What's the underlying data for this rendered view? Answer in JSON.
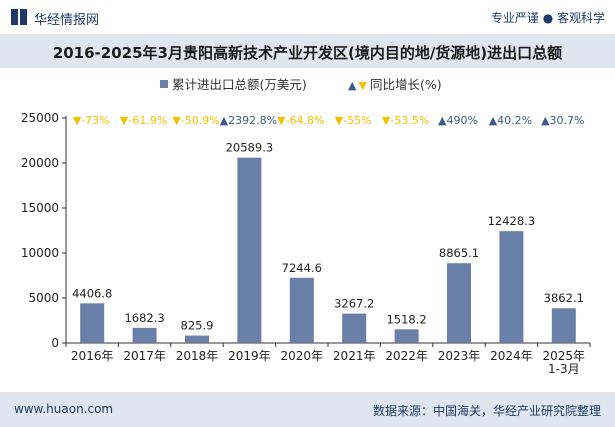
{
  "header": {
    "brand": "华经情报网",
    "tagline": "专业严谨 ● 客观科学"
  },
  "title": "2016-2025年3月贵阳高新技术产业开发区(境内目的地/货源地)进出口总额",
  "legend": {
    "bar_label": "累计进出口总额(万美元)",
    "growth_label": "同比增长(%)"
  },
  "footer": {
    "site": "www.huaon.com",
    "source": "数据来源：中国海关，华经产业研究院整理"
  },
  "colors": {
    "bar": "#6a7fa8",
    "up": "#3d5a8a",
    "down": "#f2c200",
    "title_bg": "#dfe6ef"
  },
  "chart_data": {
    "type": "bar",
    "categories": [
      "2016年",
      "2017年",
      "2018年",
      "2019年",
      "2020年",
      "2021年",
      "2022年",
      "2023年",
      "2024年",
      "2025年\n1-3月"
    ],
    "series": [
      {
        "name": "累计进出口总额(万美元)",
        "values": [
          4406.8,
          1682.3,
          825.9,
          20589.3,
          7244.6,
          3267.2,
          1518.2,
          8865.1,
          12428.3,
          3862.1
        ]
      }
    ],
    "growth": {
      "name": "同比增长(%)",
      "labels": [
        "-73%",
        "-61.9%",
        "-50.9%",
        "2392.8%",
        "-64.8%",
        "-55%",
        "-53.5%",
        "490%",
        "40.2%",
        "30.7%"
      ],
      "direction": [
        "down",
        "down",
        "down",
        "up",
        "down",
        "down",
        "down",
        "up",
        "up",
        "up"
      ]
    },
    "ylim": [
      0,
      25000
    ],
    "yticks": [
      0,
      5000,
      10000,
      15000,
      20000,
      25000
    ],
    "grid": false,
    "legend_position": "top-center"
  }
}
